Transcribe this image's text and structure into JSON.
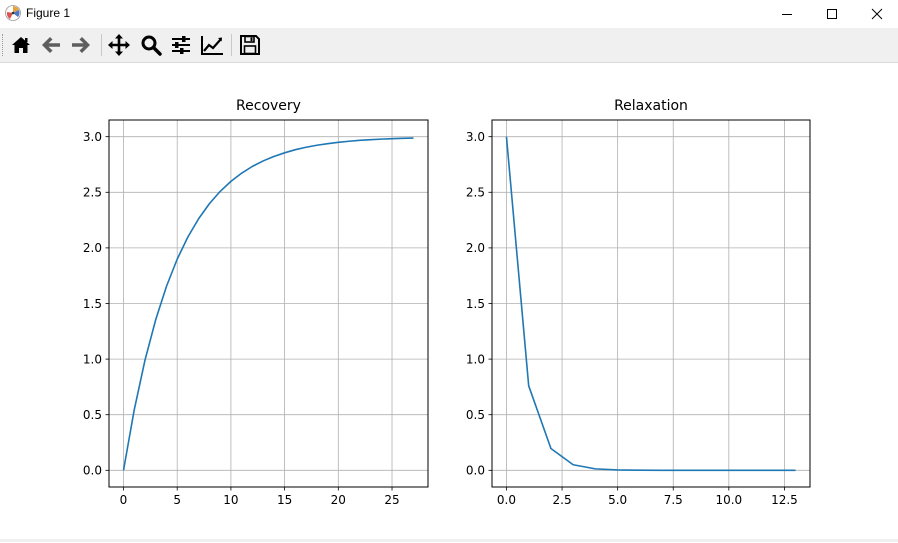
{
  "window": {
    "title": "Figure 1",
    "controls": [
      "minimize-icon",
      "maximize-icon",
      "close-icon"
    ]
  },
  "toolbar": {
    "buttons": [
      {
        "name": "home",
        "icon": "home-icon"
      },
      {
        "name": "back",
        "icon": "arrow-left-icon"
      },
      {
        "name": "forward",
        "icon": "arrow-right-icon"
      },
      {
        "name": "pan",
        "icon": "move-icon"
      },
      {
        "name": "zoom",
        "icon": "magnifier-icon"
      },
      {
        "name": "configure-subplots",
        "icon": "sliders-icon"
      },
      {
        "name": "edit-axis",
        "icon": "line-chart-icon"
      },
      {
        "name": "save",
        "icon": "floppy-disk-icon"
      }
    ]
  },
  "colors": {
    "line": "#1f77b4",
    "grid": "#b0b0b0",
    "toolbar_bg": "#f0f0f0"
  },
  "chart_data": [
    {
      "type": "line",
      "title": "Recovery",
      "xlabel": "",
      "ylabel": "",
      "grid": true,
      "xlim": [
        -1.35,
        28.35
      ],
      "ylim": [
        -0.15,
        3.15
      ],
      "xticks": [
        0,
        5,
        10,
        15,
        20,
        25
      ],
      "xtick_labels": [
        "0",
        "5",
        "10",
        "15",
        "20",
        "25"
      ],
      "yticks": [
        0.0,
        0.5,
        1.0,
        1.5,
        2.0,
        2.5,
        3.0
      ],
      "ytick_labels": [
        "0.0",
        "0.5",
        "1.0",
        "1.5",
        "2.0",
        "2.5",
        "3.0"
      ],
      "series": [
        {
          "x": [
            0,
            1,
            2,
            3,
            4,
            5,
            6,
            7,
            8,
            9,
            10,
            11,
            12,
            13,
            14,
            15,
            16,
            17,
            18,
            19,
            20,
            21,
            22,
            23,
            24,
            25,
            26,
            27
          ],
          "y": [
            0.0,
            0.544,
            0.99,
            1.355,
            1.654,
            1.899,
            2.099,
            2.263,
            2.398,
            2.508,
            2.598,
            2.672,
            2.733,
            2.782,
            2.822,
            2.855,
            2.883,
            2.905,
            2.923,
            2.937,
            2.949,
            2.959,
            2.967,
            2.973,
            2.978,
            2.982,
            2.985,
            2.988
          ]
        }
      ]
    },
    {
      "type": "line",
      "title": "Relaxation",
      "xlabel": "",
      "ylabel": "",
      "grid": true,
      "xlim": [
        -0.65,
        13.65
      ],
      "ylim": [
        -0.15,
        3.15
      ],
      "xticks": [
        0.0,
        2.5,
        5.0,
        7.5,
        10.0,
        12.5
      ],
      "xtick_labels": [
        "0.0",
        "2.5",
        "5.0",
        "7.5",
        "10.0",
        "12.5"
      ],
      "yticks": [
        0.0,
        0.5,
        1.0,
        1.5,
        2.0,
        2.5,
        3.0
      ],
      "ytick_labels": [
        "0.0",
        "0.5",
        "1.0",
        "1.5",
        "2.0",
        "2.5",
        "3.0"
      ],
      "series": [
        {
          "x": [
            0,
            1,
            2,
            3,
            4,
            5,
            6,
            7,
            8,
            9,
            10,
            11,
            12,
            13
          ],
          "y": [
            3.0,
            0.76,
            0.196,
            0.05,
            0.013,
            0.003,
            0.001,
            0.0,
            0.0,
            0.0,
            0.0,
            0.0,
            0.0,
            0.0
          ]
        }
      ]
    }
  ]
}
